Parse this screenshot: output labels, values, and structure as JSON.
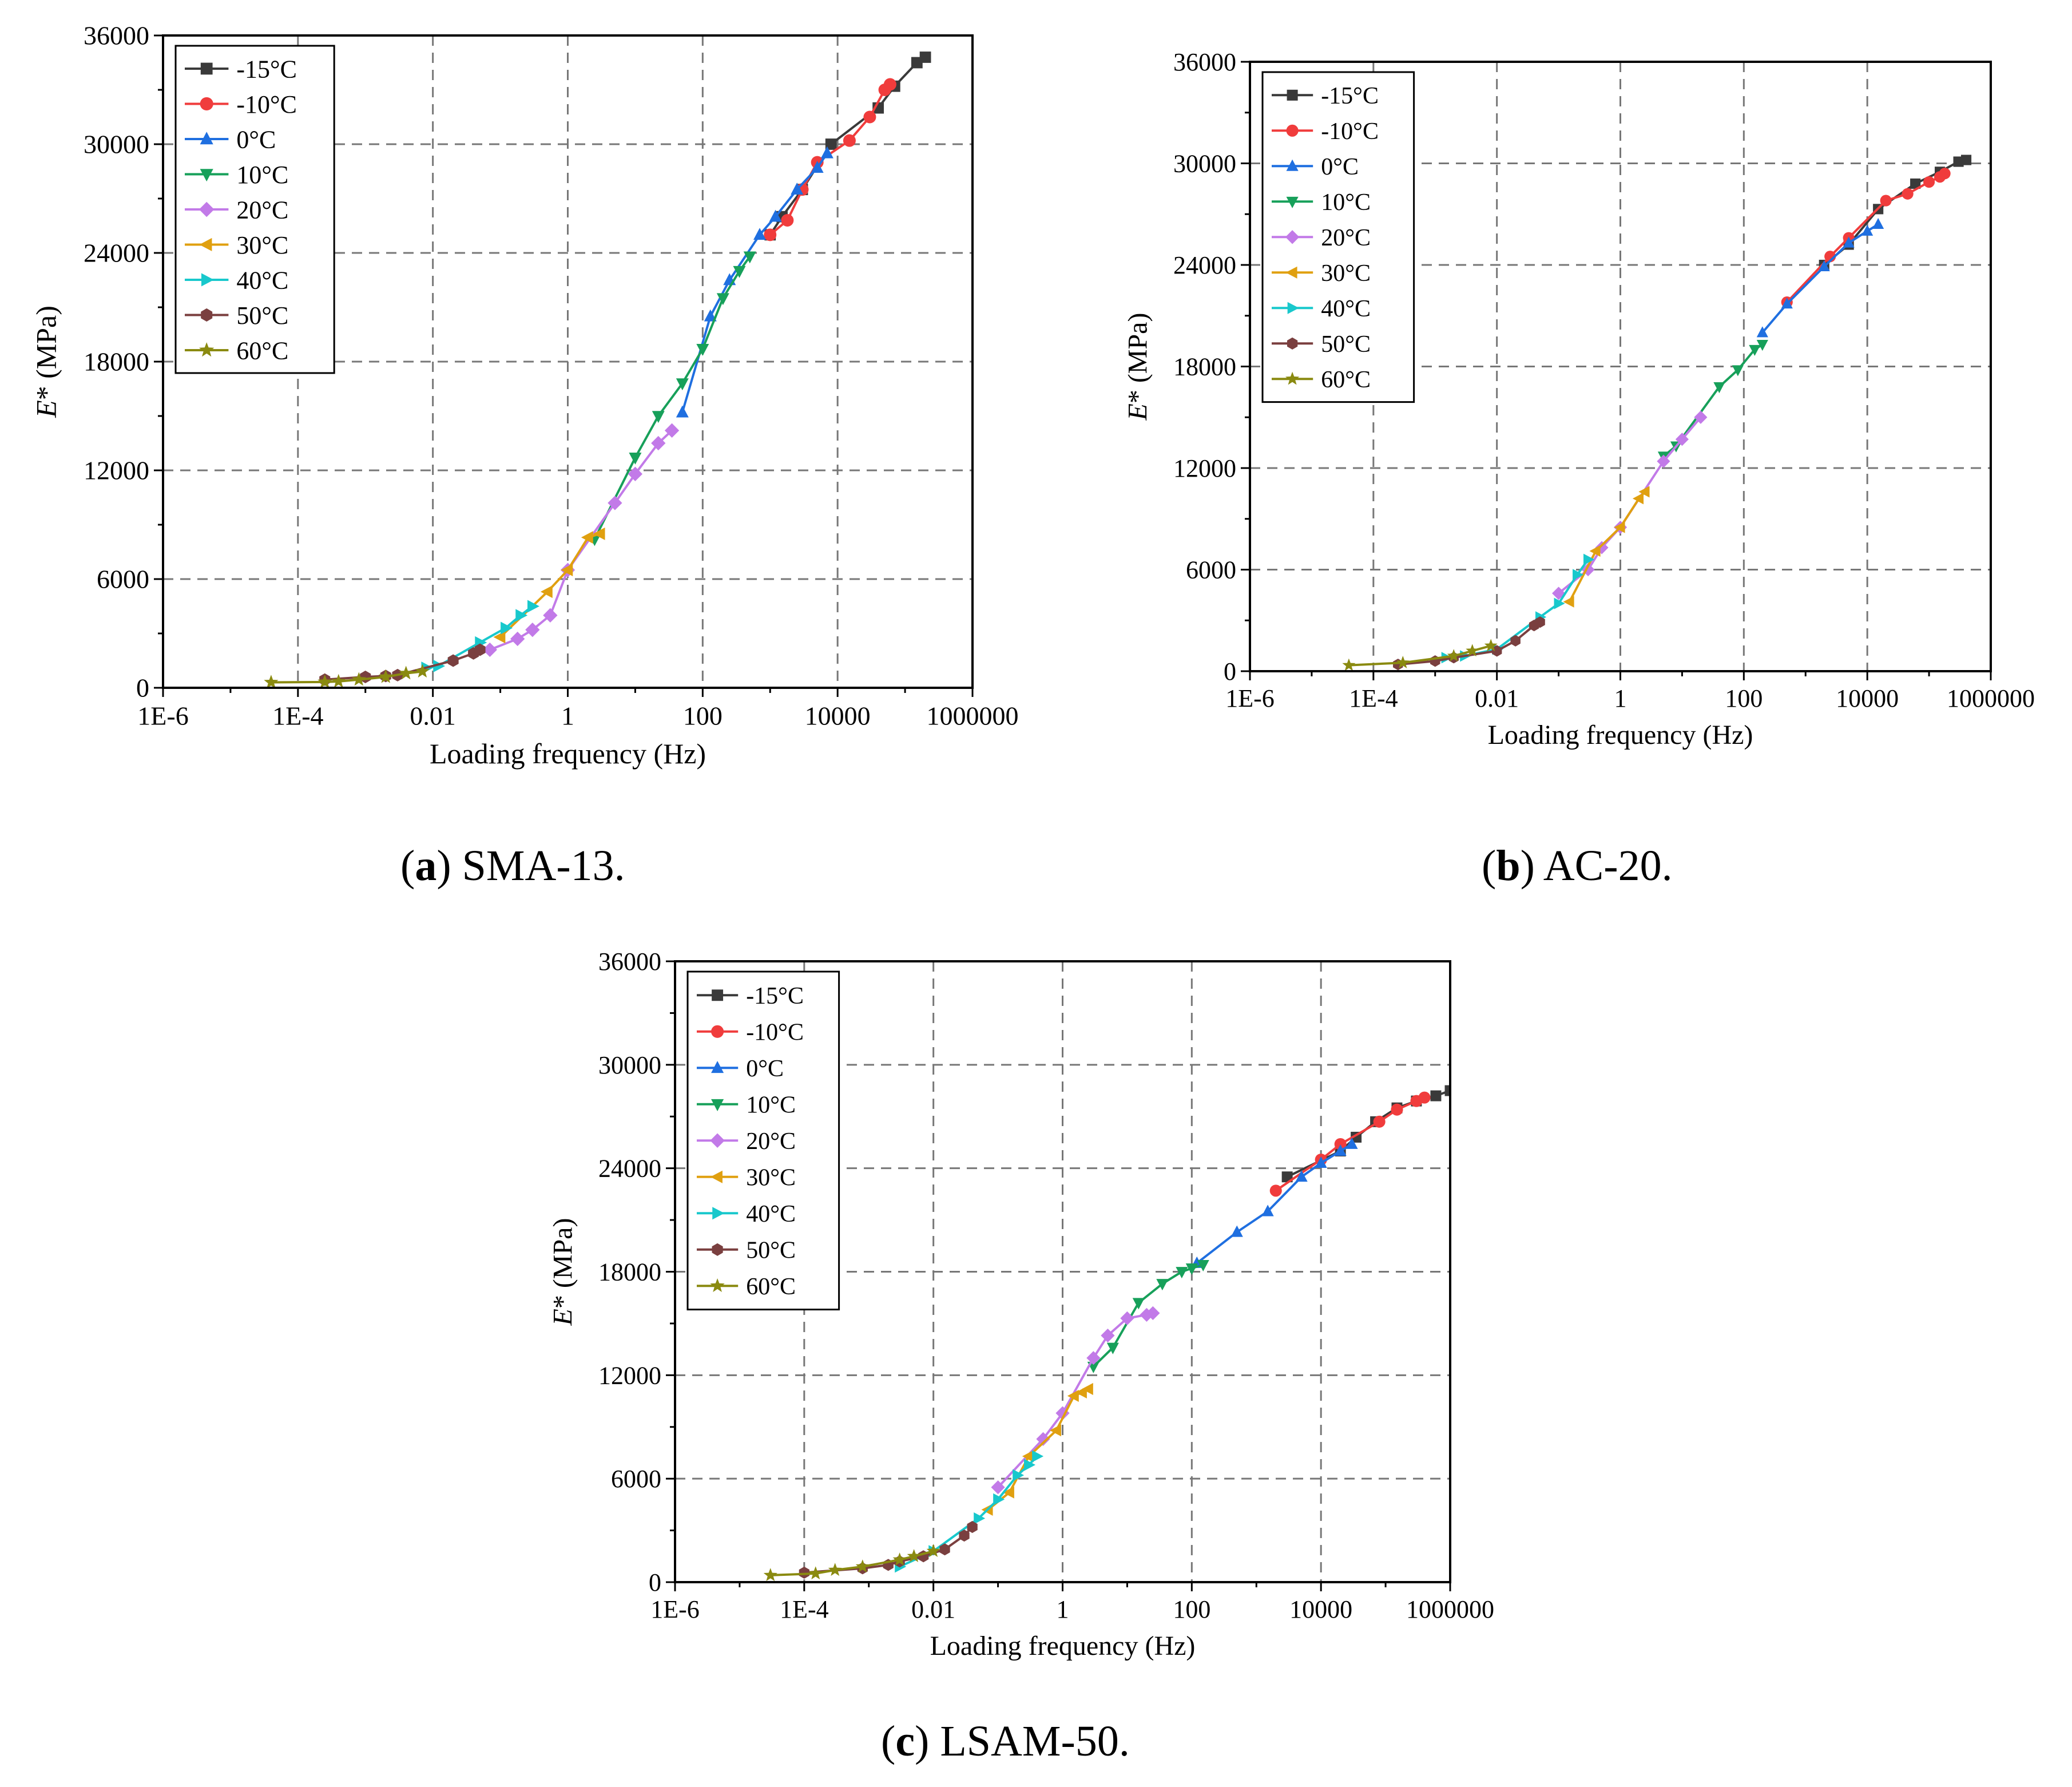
{
  "captions": [
    {
      "letter": "a",
      "text": " SMA-13."
    },
    {
      "letter": "b",
      "text": " AC-20."
    },
    {
      "letter": "c",
      "text": " LSAM-50."
    }
  ],
  "series_styles": [
    {
      "name": "-15°C",
      "color": "#3a3a3a",
      "marker": "square"
    },
    {
      "name": "-10°C",
      "color": "#f03c3c",
      "marker": "circle"
    },
    {
      "name": "0°C",
      "color": "#1f6fe0",
      "marker": "triangle-up"
    },
    {
      "name": "10°C",
      "color": "#17a05a",
      "marker": "triangle-down"
    },
    {
      "name": "20°C",
      "color": "#c27ae8",
      "marker": "diamond"
    },
    {
      "name": "30°C",
      "color": "#e0a010",
      "marker": "triangle-left"
    },
    {
      "name": "40°C",
      "color": "#18c8cc",
      "marker": "triangle-right"
    },
    {
      "name": "50°C",
      "color": "#7a3f3f",
      "marker": "hexagon"
    },
    {
      "name": "60°C",
      "color": "#8a8a10",
      "marker": "star"
    }
  ],
  "chart_data": [
    {
      "id": "a",
      "type": "line",
      "title": "SMA-13.",
      "xlabel": "Loading frequency (Hz)",
      "ylabel": "E* (MPa)",
      "xscale": "log",
      "xlim": [
        1e-06,
        1000000.0
      ],
      "ylim": [
        0,
        36000
      ],
      "xticks": [
        1e-06,
        0.0001,
        0.01,
        1,
        100,
        10000,
        1000000
      ],
      "xtick_labels": [
        "1E-6",
        "1E-4",
        "0.01",
        "1",
        "100",
        "10000",
        "1000000"
      ],
      "yticks": [
        0,
        6000,
        12000,
        18000,
        24000,
        30000,
        36000
      ],
      "ytick_labels": [
        "0",
        "6000",
        "12000",
        "18000",
        "24000",
        "30000",
        "36000"
      ],
      "legend": "top-left",
      "grid": true,
      "series": [
        {
          "name": "-15°C",
          "x": [
            1000,
            1500,
            3000,
            8000,
            40000,
            70000,
            150000,
            200000
          ],
          "y": [
            25000,
            26000,
            27500,
            30000,
            32000,
            33200,
            34500,
            34800
          ]
        },
        {
          "name": "-10°C",
          "x": [
            1000,
            1800,
            3000,
            5000,
            15000,
            30000,
            50000,
            60000
          ],
          "y": [
            25000,
            25800,
            27500,
            29000,
            30200,
            31500,
            33000,
            33300
          ]
        },
        {
          "name": "0°C",
          "x": [
            50,
            130,
            250,
            700,
            1200,
            2500,
            5000,
            7000
          ],
          "y": [
            15200,
            20500,
            22500,
            25000,
            26000,
            27500,
            28700,
            29500
          ]
        },
        {
          "name": "10°C",
          "x": [
            2.5,
            10,
            22,
            50,
            100,
            200,
            350,
            500
          ],
          "y": [
            8200,
            12700,
            15000,
            16800,
            18700,
            21500,
            23000,
            23800
          ]
        },
        {
          "name": "20°C",
          "x": [
            0.07,
            0.18,
            0.3,
            0.55,
            1,
            5,
            10,
            22,
            35
          ],
          "y": [
            2100,
            2700,
            3200,
            4000,
            6500,
            10200,
            11800,
            13500,
            14200
          ]
        },
        {
          "name": "30°C",
          "x": [
            0.1,
            0.5,
            1,
            2,
            3
          ],
          "y": [
            2800,
            5300,
            6500,
            8300,
            8500
          ]
        },
        {
          "name": "40°C",
          "x": [
            0.008,
            0.012,
            0.05,
            0.12,
            0.2,
            0.3
          ],
          "y": [
            1100,
            1200,
            2500,
            3300,
            4000,
            4500
          ]
        },
        {
          "name": "50°C",
          "x": [
            0.00025,
            0.001,
            0.002,
            0.003,
            0.02,
            0.04,
            0.05
          ],
          "y": [
            450,
            600,
            650,
            700,
            1500,
            1900,
            2100
          ]
        },
        {
          "name": "60°C",
          "x": [
            4e-05,
            0.00025,
            0.0004,
            0.0008,
            0.002,
            0.004,
            0.007
          ],
          "y": [
            300,
            320,
            350,
            450,
            600,
            800,
            900
          ]
        }
      ]
    },
    {
      "id": "b",
      "type": "line",
      "title": "AC-20.",
      "xlabel": "Loading frequency (Hz)",
      "ylabel": "E* (MPa)",
      "xscale": "log",
      "xlim": [
        1e-06,
        1000000.0
      ],
      "ylim": [
        0,
        36000
      ],
      "xticks": [
        1e-06,
        0.0001,
        0.01,
        1,
        100,
        10000,
        1000000
      ],
      "xtick_labels": [
        "1E-6",
        "1E-4",
        "0.01",
        "1",
        "100",
        "10000",
        "1000000"
      ],
      "yticks": [
        0,
        6000,
        12000,
        18000,
        24000,
        30000,
        36000
      ],
      "ytick_labels": [
        "0",
        "6000",
        "12000",
        "18000",
        "24000",
        "30000",
        "36000"
      ],
      "legend": "top-left",
      "grid": true,
      "series": [
        {
          "name": "-15°C",
          "x": [
            2000,
            5000,
            15000,
            60000,
            150000,
            300000,
            400000
          ],
          "y": [
            24000,
            25200,
            27300,
            28800,
            29500,
            30100,
            30200
          ]
        },
        {
          "name": "-10°C",
          "x": [
            500,
            2500,
            5000,
            20000,
            45000,
            100000,
            150000,
            180000
          ],
          "y": [
            21800,
            24500,
            25600,
            27800,
            28200,
            28900,
            29200,
            29400
          ]
        },
        {
          "name": "0°C",
          "x": [
            200,
            500,
            2000,
            5000,
            10000,
            15000
          ],
          "y": [
            20000,
            21700,
            23900,
            25300,
            26000,
            26400
          ]
        },
        {
          "name": "10°C",
          "x": [
            5,
            8,
            40,
            80,
            150,
            200
          ],
          "y": [
            12700,
            13300,
            16800,
            17800,
            19000,
            19300
          ]
        },
        {
          "name": "20°C",
          "x": [
            0.1,
            0.3,
            0.5,
            1,
            5,
            10,
            20
          ],
          "y": [
            4600,
            6000,
            7300,
            8500,
            12400,
            13700,
            15000
          ]
        },
        {
          "name": "30°C",
          "x": [
            0.15,
            0.4,
            1,
            2,
            2.5
          ],
          "y": [
            4100,
            7100,
            8500,
            10200,
            10600
          ]
        },
        {
          "name": "40°C",
          "x": [
            0.0015,
            0.003,
            0.01,
            0.05,
            0.1,
            0.2,
            0.3
          ],
          "y": [
            800,
            900,
            1300,
            3200,
            4000,
            5700,
            6600
          ]
        },
        {
          "name": "50°C",
          "x": [
            0.00025,
            0.001,
            0.002,
            0.01,
            0.02,
            0.04,
            0.05
          ],
          "y": [
            400,
            600,
            800,
            1200,
            1800,
            2700,
            2900
          ]
        },
        {
          "name": "60°C",
          "x": [
            4e-05,
            0.0003,
            0.002,
            0.004,
            0.008
          ],
          "y": [
            350,
            500,
            900,
            1200,
            1500
          ]
        }
      ]
    },
    {
      "id": "c",
      "type": "line",
      "title": "LSAM-50.",
      "xlabel": "Loading frequency (Hz)",
      "ylabel": "E* (MPa)",
      "xscale": "log",
      "xlim": [
        1e-06,
        1000000.0
      ],
      "ylim": [
        0,
        36000
      ],
      "xticks": [
        1e-06,
        0.0001,
        0.01,
        1,
        100,
        10000,
        1000000
      ],
      "xtick_labels": [
        "1E-6",
        "1E-4",
        "0.01",
        "1",
        "100",
        "10000",
        "1000000"
      ],
      "yticks": [
        0,
        6000,
        12000,
        18000,
        24000,
        30000,
        36000
      ],
      "ytick_labels": [
        "0",
        "6000",
        "12000",
        "18000",
        "24000",
        "30000",
        "36000"
      ],
      "legend": "top-left",
      "grid": true,
      "series": [
        {
          "name": "-15°C",
          "x": [
            3000,
            20000,
            35000,
            70000,
            150000,
            300000,
            600000,
            1000000
          ],
          "y": [
            23500,
            25000,
            25800,
            26700,
            27500,
            27900,
            28200,
            28500
          ]
        },
        {
          "name": "-10°C",
          "x": [
            2000,
            10000,
            20000,
            80000,
            150000,
            300000,
            400000
          ],
          "y": [
            22700,
            24500,
            25400,
            26700,
            27400,
            27900,
            28100
          ]
        },
        {
          "name": "0°C",
          "x": [
            120,
            500,
            1500,
            5000,
            10000,
            20000,
            30000
          ],
          "y": [
            18500,
            20300,
            21500,
            23500,
            24300,
            25000,
            25400
          ]
        },
        {
          "name": "10°C",
          "x": [
            3,
            6,
            15,
            35,
            70,
            100,
            150
          ],
          "y": [
            12500,
            13600,
            16200,
            17300,
            18000,
            18200,
            18400
          ]
        },
        {
          "name": "20°C",
          "x": [
            0.1,
            0.5,
            1,
            3,
            5,
            10,
            20,
            25
          ],
          "y": [
            5500,
            8300,
            9800,
            13000,
            14300,
            15300,
            15500,
            15600
          ]
        },
        {
          "name": "30°C",
          "x": [
            0.07,
            0.15,
            0.3,
            0.8,
            1.5,
            2,
            2.5
          ],
          "y": [
            4200,
            5200,
            7300,
            8800,
            10800,
            11000,
            11200
          ]
        },
        {
          "name": "40°C",
          "x": [
            0.003,
            0.01,
            0.05,
            0.1,
            0.2,
            0.3,
            0.4
          ],
          "y": [
            900,
            1800,
            3700,
            4800,
            6200,
            6800,
            7300
          ]
        },
        {
          "name": "50°C",
          "x": [
            0.0001,
            0.0008,
            0.002,
            0.003,
            0.007,
            0.015,
            0.03,
            0.04
          ],
          "y": [
            550,
            800,
            1000,
            1200,
            1500,
            1900,
            2700,
            3200
          ]
        },
        {
          "name": "60°C",
          "x": [
            3e-05,
            0.00015,
            0.0003,
            0.0008,
            0.003,
            0.005,
            0.01
          ],
          "y": [
            400,
            500,
            700,
            900,
            1300,
            1500,
            1800
          ]
        }
      ]
    }
  ]
}
